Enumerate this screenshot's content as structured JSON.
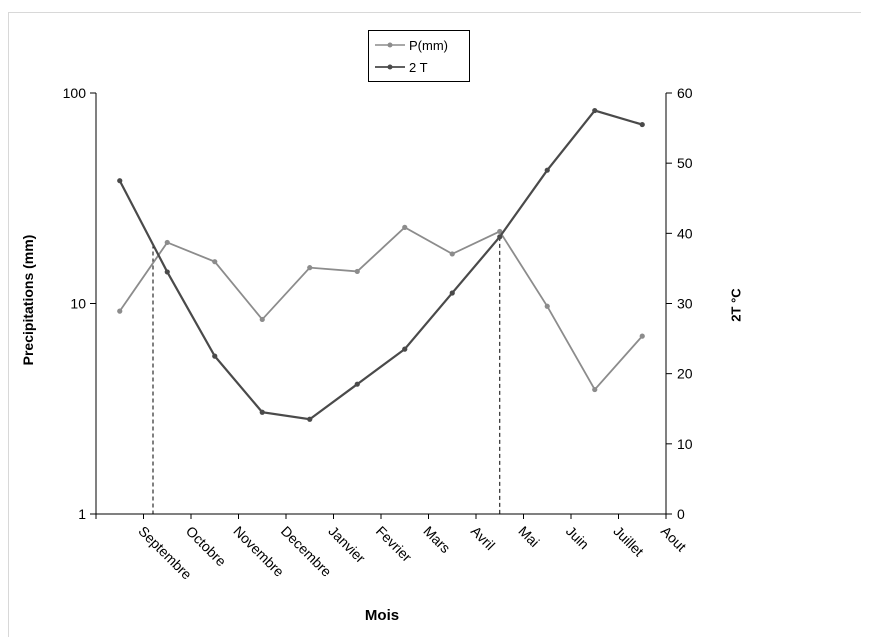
{
  "chart_data": {
    "type": "line",
    "categories": [
      "Septembre",
      "Octobre",
      "Novembre",
      "Decembre",
      "Janvier",
      "Fevrier",
      "Mars",
      "Avril",
      "Mai",
      "Juin",
      "Juillet",
      "Aout"
    ],
    "series": [
      {
        "name": "P(mm)",
        "axis": "left",
        "color": "#8c8c8c",
        "values": [
          9.2,
          19.5,
          15.8,
          8.4,
          14.8,
          14.2,
          23.0,
          17.2,
          22.0,
          9.7,
          3.9,
          7.0
        ]
      },
      {
        "name": "2 T",
        "axis": "right",
        "color": "#4a4a4a",
        "values": [
          47.5,
          34.5,
          22.5,
          14.5,
          13.5,
          18.5,
          23.5,
          31.5,
          39.5,
          49.0,
          57.5,
          55.5
        ]
      }
    ],
    "left_axis": {
      "label": "Precipitations (mm)",
      "scale": "log",
      "range": [
        1,
        100
      ],
      "ticks": [
        1,
        10,
        100
      ]
    },
    "right_axis": {
      "label": "2T °C",
      "scale": "linear",
      "range": [
        0,
        60
      ],
      "ticks": [
        0,
        10,
        20,
        30,
        40,
        50,
        60
      ]
    },
    "xlabel": "Mois",
    "legend_position": "top-center",
    "dry_period_markers": [
      0.7,
      8.0
    ]
  }
}
